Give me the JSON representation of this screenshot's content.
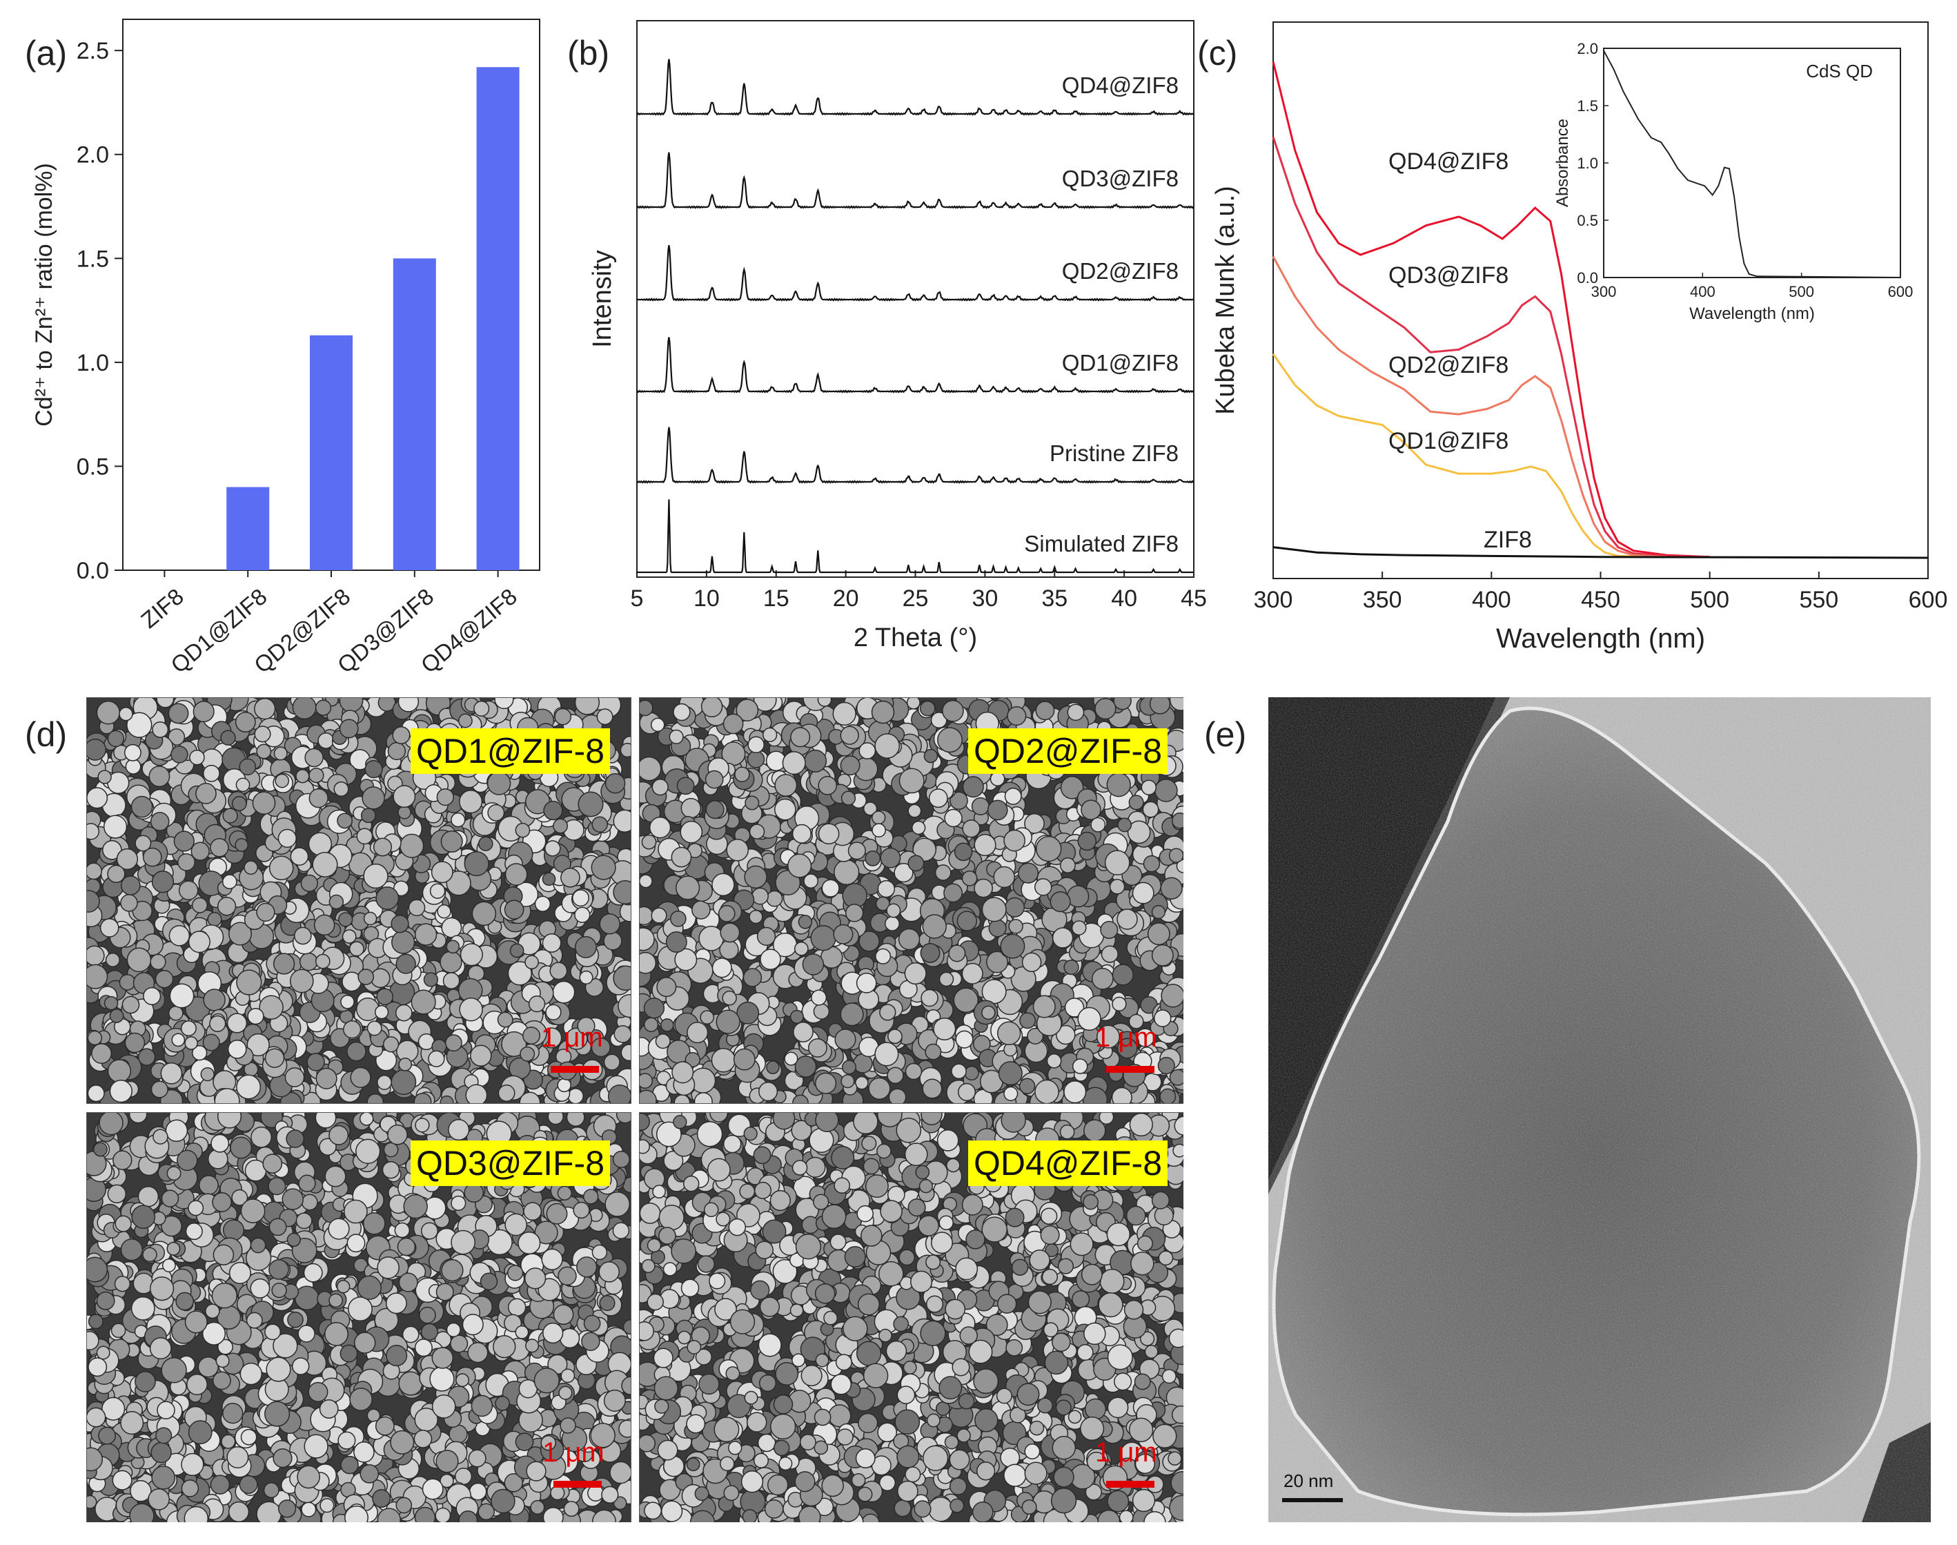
{
  "panels": {
    "a": {
      "letter": "(a)"
    },
    "b": {
      "letter": "(b)"
    },
    "c": {
      "letter": "(c)"
    },
    "d": {
      "letter": "(d)"
    },
    "e": {
      "letter": "(e)"
    }
  },
  "chart_data": [
    {
      "id": "a",
      "type": "bar",
      "ylabel": "Cd²⁺ to Zn²⁺ ratio (mol%)",
      "categories": [
        "ZIF8",
        "QD1@ZIF8",
        "QD2@ZIF8",
        "QD3@ZIF8",
        "QD4@ZIF8"
      ],
      "values": [
        0,
        0.4,
        1.13,
        1.5,
        2.42
      ],
      "ylim": [
        0,
        2.5
      ],
      "yticks": [
        "0.0",
        "0.5",
        "1.0",
        "1.5",
        "2.0",
        "2.5"
      ],
      "color": "#5b6df2",
      "grid": false
    },
    {
      "id": "b",
      "type": "line",
      "xlabel": "2 Theta (°)",
      "ylabel": "Intensity",
      "xlim": [
        5,
        45
      ],
      "xticks": [
        "5",
        "10",
        "15",
        "20",
        "25",
        "30",
        "35",
        "40",
        "45"
      ],
      "peaks": [
        {
          "x": 7.3,
          "h": 1.0
        },
        {
          "x": 10.4,
          "h": 0.22
        },
        {
          "x": 12.7,
          "h": 0.55
        },
        {
          "x": 14.7,
          "h": 0.08
        },
        {
          "x": 16.4,
          "h": 0.15
        },
        {
          "x": 18.0,
          "h": 0.3
        },
        {
          "x": 22.1,
          "h": 0.06
        },
        {
          "x": 24.5,
          "h": 0.1
        },
        {
          "x": 25.6,
          "h": 0.08
        },
        {
          "x": 26.7,
          "h": 0.14
        },
        {
          "x": 29.6,
          "h": 0.1
        },
        {
          "x": 30.6,
          "h": 0.08
        },
        {
          "x": 31.5,
          "h": 0.07
        },
        {
          "x": 32.4,
          "h": 0.06
        },
        {
          "x": 34.0,
          "h": 0.05
        },
        {
          "x": 35.0,
          "h": 0.07
        },
        {
          "x": 36.5,
          "h": 0.05
        },
        {
          "x": 39.4,
          "h": 0.04
        },
        {
          "x": 42.1,
          "h": 0.04
        },
        {
          "x": 44.0,
          "h": 0.04
        }
      ],
      "series": [
        {
          "name": "QD4@ZIF8",
          "scale": 0.9
        },
        {
          "name": "QD3@ZIF8",
          "scale": 0.9
        },
        {
          "name": "QD2@ZIF8",
          "scale": 0.9
        },
        {
          "name": "QD1@ZIF8",
          "scale": 0.9
        },
        {
          "name": "Pristine ZIF8",
          "scale": 0.9
        },
        {
          "name": "Simulated ZIF8",
          "scale": 1.2
        }
      ],
      "color": "#111111"
    },
    {
      "id": "c",
      "type": "line",
      "xlabel": "Wavelength (nm)",
      "ylabel": "Kubeka Munk (a.u.)",
      "xlim": [
        300,
        600
      ],
      "xticks": [
        "300",
        "350",
        "400",
        "450",
        "500",
        "550",
        "600"
      ],
      "series": [
        {
          "name": "QD4@ZIF8",
          "color": "#e8102a",
          "points": [
            [
              300,
              5.6
            ],
            [
              310,
              4.6
            ],
            [
              320,
              3.9
            ],
            [
              330,
              3.55
            ],
            [
              340,
              3.42
            ],
            [
              355,
              3.55
            ],
            [
              370,
              3.75
            ],
            [
              385,
              3.85
            ],
            [
              395,
              3.75
            ],
            [
              405,
              3.6
            ],
            [
              412,
              3.75
            ],
            [
              420,
              3.95
            ],
            [
              427,
              3.8
            ],
            [
              432,
              3.2
            ],
            [
              437,
              2.4
            ],
            [
              442,
              1.6
            ],
            [
              447,
              0.9
            ],
            [
              452,
              0.45
            ],
            [
              458,
              0.18
            ],
            [
              465,
              0.08
            ],
            [
              480,
              0.03
            ],
            [
              500,
              0.01
            ]
          ]
        },
        {
          "name": "QD3@ZIF8",
          "color": "#e0304a",
          "points": [
            [
              300,
              4.75
            ],
            [
              310,
              4.0
            ],
            [
              320,
              3.45
            ],
            [
              330,
              3.1
            ],
            [
              345,
              2.85
            ],
            [
              360,
              2.6
            ],
            [
              372,
              2.32
            ],
            [
              385,
              2.35
            ],
            [
              398,
              2.5
            ],
            [
              408,
              2.65
            ],
            [
              414,
              2.85
            ],
            [
              420,
              2.95
            ],
            [
              427,
              2.78
            ],
            [
              432,
              2.3
            ],
            [
              437,
              1.7
            ],
            [
              442,
              1.1
            ],
            [
              447,
              0.6
            ],
            [
              452,
              0.3
            ],
            [
              458,
              0.12
            ],
            [
              465,
              0.05
            ],
            [
              480,
              0.02
            ],
            [
              500,
              0.01
            ]
          ]
        },
        {
          "name": "QD2@ZIF8",
          "color": "#f07860",
          "points": [
            [
              300,
              3.4
            ],
            [
              310,
              2.95
            ],
            [
              320,
              2.6
            ],
            [
              330,
              2.35
            ],
            [
              345,
              2.1
            ],
            [
              360,
              1.9
            ],
            [
              372,
              1.65
            ],
            [
              385,
              1.62
            ],
            [
              398,
              1.68
            ],
            [
              408,
              1.78
            ],
            [
              414,
              1.95
            ],
            [
              420,
              2.05
            ],
            [
              427,
              1.92
            ],
            [
              432,
              1.55
            ],
            [
              437,
              1.1
            ],
            [
              442,
              0.7
            ],
            [
              447,
              0.38
            ],
            [
              452,
              0.18
            ],
            [
              458,
              0.08
            ],
            [
              465,
              0.03
            ],
            [
              480,
              0.01
            ]
          ]
        },
        {
          "name": "QD1@ZIF8",
          "color": "#f5c040",
          "points": [
            [
              300,
              2.3
            ],
            [
              310,
              1.95
            ],
            [
              320,
              1.72
            ],
            [
              330,
              1.6
            ],
            [
              340,
              1.55
            ],
            [
              350,
              1.5
            ],
            [
              360,
              1.3
            ],
            [
              370,
              1.05
            ],
            [
              385,
              0.95
            ],
            [
              400,
              0.95
            ],
            [
              410,
              0.98
            ],
            [
              418,
              1.03
            ],
            [
              425,
              0.98
            ],
            [
              432,
              0.75
            ],
            [
              437,
              0.5
            ],
            [
              442,
              0.3
            ],
            [
              447,
              0.15
            ],
            [
              452,
              0.06
            ],
            [
              458,
              0.02
            ],
            [
              470,
              0.01
            ]
          ]
        },
        {
          "name": "ZIF8",
          "color": "#111111",
          "points": [
            [
              300,
              0.12
            ],
            [
              310,
              0.09
            ],
            [
              320,
              0.06
            ],
            [
              340,
              0.04
            ],
            [
              360,
              0.03
            ],
            [
              400,
              0.02
            ],
            [
              450,
              0.01
            ],
            [
              600,
              0.0
            ]
          ]
        }
      ],
      "inset": {
        "xlabel": "Wavelength (nm)",
        "ylabel": "Absorbance",
        "legend": "CdS QD",
        "xlim": [
          300,
          600
        ],
        "ylim": [
          0,
          2.0
        ],
        "xticks": [
          "300",
          "400",
          "500",
          "600"
        ],
        "yticks": [
          "0.0",
          "0.5",
          "1.0",
          "1.5",
          "2.0"
        ],
        "points": [
          [
            300,
            1.98
          ],
          [
            310,
            1.82
          ],
          [
            320,
            1.62
          ],
          [
            335,
            1.38
          ],
          [
            348,
            1.22
          ],
          [
            358,
            1.18
          ],
          [
            366,
            1.08
          ],
          [
            375,
            0.95
          ],
          [
            385,
            0.85
          ],
          [
            395,
            0.82
          ],
          [
            402,
            0.8
          ],
          [
            410,
            0.72
          ],
          [
            416,
            0.8
          ],
          [
            422,
            0.96
          ],
          [
            427,
            0.95
          ],
          [
            432,
            0.7
          ],
          [
            437,
            0.35
          ],
          [
            442,
            0.12
          ],
          [
            447,
            0.03
          ],
          [
            455,
            0.01
          ],
          [
            600,
            0.0
          ]
        ]
      }
    }
  ],
  "sem": {
    "tiles": [
      {
        "label": "QD1@ZIF-8",
        "scale": "1 μm"
      },
      {
        "label": "QD2@ZIF-8",
        "scale": "1 μm"
      },
      {
        "label": "QD3@ZIF-8",
        "scale": "1 μm"
      },
      {
        "label": "QD4@ZIF-8",
        "scale": "1 μm"
      }
    ]
  },
  "tem": {
    "scale": "20 nm"
  }
}
